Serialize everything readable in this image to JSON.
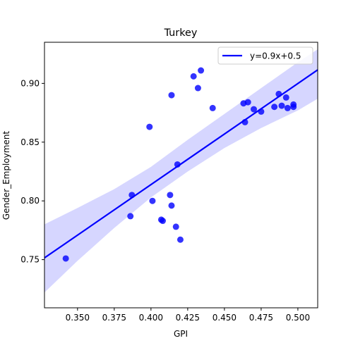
{
  "chart_data": {
    "type": "scatter",
    "title": "Turkey",
    "xlabel": "GPI",
    "ylabel": "Gender_Employment",
    "xlim": [
      0.3275,
      0.5135
    ],
    "ylim": [
      0.709,
      0.935
    ],
    "xticks": [
      0.35,
      0.375,
      0.4,
      0.425,
      0.45,
      0.475,
      0.5
    ],
    "xtick_labels": [
      "0.350",
      "0.375",
      "0.400",
      "0.425",
      "0.450",
      "0.475",
      "0.500"
    ],
    "yticks": [
      0.75,
      0.8,
      0.85,
      0.9
    ],
    "ytick_labels": [
      "0.75",
      "0.80",
      "0.85",
      "0.90"
    ],
    "grid": false,
    "legend": {
      "position": "upper right",
      "entries": [
        "y=0.9x+0.5"
      ]
    },
    "colors": {
      "points": "#0000ff",
      "line": "#0000ff",
      "band": "#c8c8ff"
    },
    "series": [
      {
        "kind": "points",
        "x": [
          0.342,
          0.386,
          0.387,
          0.399,
          0.401,
          0.407,
          0.408,
          0.413,
          0.414,
          0.414,
          0.417,
          0.418,
          0.42,
          0.429,
          0.432,
          0.434,
          0.442,
          0.463,
          0.464,
          0.466,
          0.47,
          0.475,
          0.484,
          0.487,
          0.489,
          0.492,
          0.493,
          0.497,
          0.497
        ],
        "y": [
          0.751,
          0.787,
          0.805,
          0.863,
          0.8,
          0.784,
          0.783,
          0.805,
          0.796,
          0.89,
          0.778,
          0.831,
          0.767,
          0.906,
          0.896,
          0.911,
          0.879,
          0.883,
          0.867,
          0.884,
          0.878,
          0.876,
          0.88,
          0.891,
          0.881,
          0.888,
          0.879,
          0.88,
          0.882
        ]
      },
      {
        "kind": "regression",
        "name": "y=0.9x+0.5",
        "x": [
          0.3275,
          0.5135
        ],
        "y": [
          0.7515,
          0.9115
        ],
        "band": {
          "x": [
            0.3275,
            0.35,
            0.375,
            0.4,
            0.425,
            0.45,
            0.475,
            0.5,
            0.5135
          ],
          "lower": [
            0.722,
            0.749,
            0.777,
            0.803,
            0.825,
            0.845,
            0.862,
            0.877,
            0.887
          ],
          "upper": [
            0.78,
            0.794,
            0.81,
            0.829,
            0.852,
            0.874,
            0.896,
            0.918,
            0.929
          ]
        }
      }
    ]
  }
}
